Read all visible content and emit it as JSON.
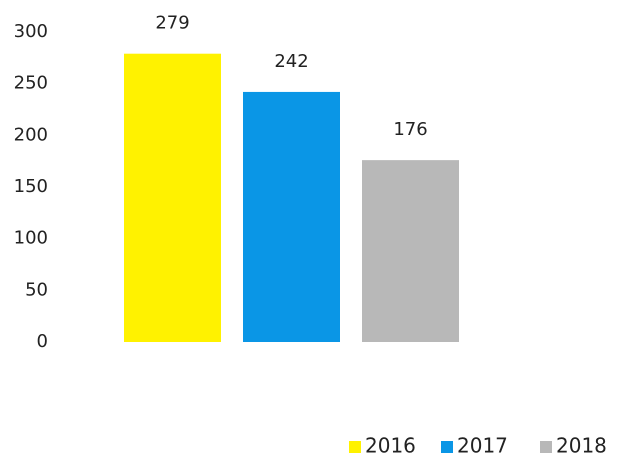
{
  "chart_data": {
    "type": "bar",
    "categories": [
      null
    ],
    "series": [
      {
        "name": "2016",
        "color": "#fff200",
        "values": [
          279
        ]
      },
      {
        "name": "2017",
        "color": "#0a96e6",
        "values": [
          242
        ]
      },
      {
        "name": "2018",
        "color": "#b8b8b8",
        "values": [
          176
        ]
      }
    ],
    "ylim": [
      0,
      300
    ],
    "yticks": [
      0,
      50,
      100,
      150,
      200,
      250,
      300
    ],
    "grid": false,
    "data_labels": true,
    "legend": "bottom-right"
  }
}
